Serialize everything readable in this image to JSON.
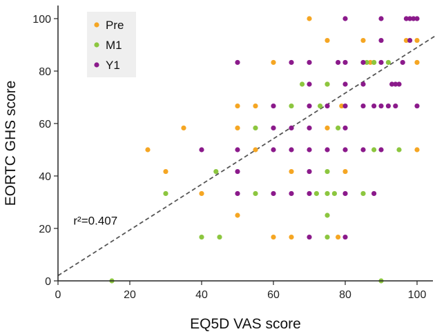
{
  "chart_data": {
    "type": "scatter",
    "title": "",
    "xlabel": "EQ5D VAS score",
    "ylabel": "EORTC GHS score",
    "xlim": [
      0,
      105
    ],
    "ylim": [
      0,
      105
    ],
    "xticks": [
      0,
      20,
      40,
      60,
      80,
      100
    ],
    "yticks": [
      0,
      20,
      40,
      60,
      80,
      100
    ],
    "legend_position": "top-left",
    "series": [
      {
        "name": "Pre",
        "color": "#F5A623",
        "points": [
          [
            70,
            100
          ],
          [
            75,
            91.7
          ],
          [
            85,
            91.7
          ],
          [
            100,
            91.7
          ],
          [
            60,
            83.3
          ],
          [
            87,
            83.3
          ],
          [
            88,
            83.3
          ],
          [
            100,
            83.3
          ],
          [
            50,
            66.7
          ],
          [
            55,
            66.7
          ],
          [
            79,
            66.7
          ],
          [
            35,
            58.3
          ],
          [
            50,
            58.3
          ],
          [
            75,
            58.3
          ],
          [
            25,
            50
          ],
          [
            55,
            50
          ],
          [
            100,
            50
          ],
          [
            30,
            41.7
          ],
          [
            65,
            41.7
          ],
          [
            80,
            41.7
          ],
          [
            40,
            33.3
          ],
          [
            50,
            25
          ],
          [
            60,
            16.7
          ],
          [
            65,
            16.7
          ],
          [
            78,
            16.7
          ],
          [
            97,
            91.7
          ],
          [
            75,
            75
          ]
        ]
      },
      {
        "name": "M1",
        "color": "#8CC63F",
        "points": [
          [
            15,
            0
          ],
          [
            90,
            0
          ],
          [
            40,
            16.7
          ],
          [
            45,
            16.7
          ],
          [
            75,
            16.7
          ],
          [
            75,
            25
          ],
          [
            30,
            33.3
          ],
          [
            55,
            33.3
          ],
          [
            72,
            33.3
          ],
          [
            75,
            33.3
          ],
          [
            77,
            33.3
          ],
          [
            85,
            33.3
          ],
          [
            75,
            41.7
          ],
          [
            55,
            58.3
          ],
          [
            78,
            58.3
          ],
          [
            65,
            66.7
          ],
          [
            73,
            66.7
          ],
          [
            68,
            75
          ],
          [
            75,
            75
          ],
          [
            86,
            83.3
          ],
          [
            88,
            83.3
          ],
          [
            92,
            83.3
          ],
          [
            88,
            50
          ],
          [
            95,
            50
          ],
          [
            44,
            41.7
          ]
        ]
      },
      {
        "name": "Y1",
        "color": "#8B1A8B",
        "points": [
          [
            80,
            100
          ],
          [
            90,
            100
          ],
          [
            97,
            100
          ],
          [
            98,
            100
          ],
          [
            99,
            100
          ],
          [
            100,
            100
          ],
          [
            90,
            91.7
          ],
          [
            98,
            91.7
          ],
          [
            50,
            83.3
          ],
          [
            65,
            83.3
          ],
          [
            70,
            83.3
          ],
          [
            78,
            83.3
          ],
          [
            80,
            83.3
          ],
          [
            85,
            83.3
          ],
          [
            90,
            83.3
          ],
          [
            96,
            83.3
          ],
          [
            70,
            75
          ],
          [
            80,
            75
          ],
          [
            85,
            75
          ],
          [
            93,
            75
          ],
          [
            94,
            75
          ],
          [
            95,
            75
          ],
          [
            60,
            66.7
          ],
          [
            70,
            66.7
          ],
          [
            75,
            66.7
          ],
          [
            80,
            66.7
          ],
          [
            85,
            66.7
          ],
          [
            88,
            66.7
          ],
          [
            90,
            66.7
          ],
          [
            94,
            66.7
          ],
          [
            100,
            66.7
          ],
          [
            60,
            58.3
          ],
          [
            65,
            58.3
          ],
          [
            70,
            58.3
          ],
          [
            80,
            58.3
          ],
          [
            40,
            50
          ],
          [
            50,
            50
          ],
          [
            60,
            50
          ],
          [
            65,
            50
          ],
          [
            70,
            50
          ],
          [
            75,
            50
          ],
          [
            80,
            50
          ],
          [
            85,
            50
          ],
          [
            90,
            50
          ],
          [
            50,
            41.7
          ],
          [
            70,
            41.7
          ],
          [
            50,
            33.3
          ],
          [
            60,
            33.3
          ],
          [
            65,
            33.3
          ],
          [
            70,
            33.3
          ],
          [
            80,
            33.3
          ],
          [
            70,
            16.7
          ],
          [
            80,
            16.7
          ],
          [
            88,
            33.3
          ],
          [
            92,
            66.7
          ]
        ]
      }
    ],
    "trendline": {
      "style": "dashed",
      "color": "#555555",
      "intercept": 2,
      "slope": 0.87,
      "x_range": [
        0,
        105
      ]
    },
    "annotations": [
      {
        "text": "r²=0.407",
        "x": 12,
        "y": 23
      }
    ]
  }
}
